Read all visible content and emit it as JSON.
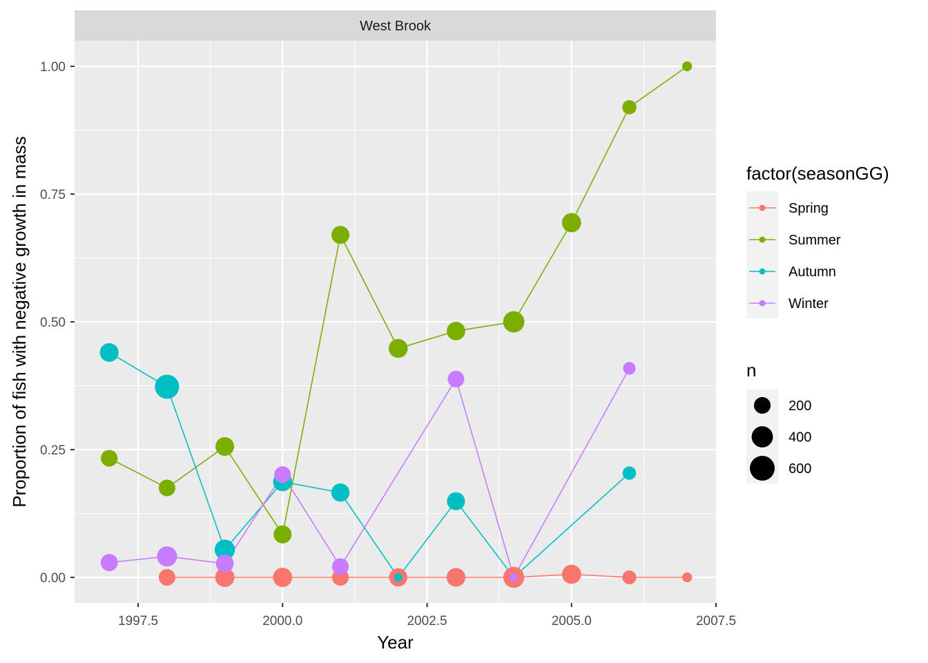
{
  "chart_data": {
    "type": "line",
    "facet_title": "West Brook",
    "xlabel": "Year",
    "ylabel": "Proportion of fish with negative growth in mass",
    "xlim": [
      1996.4,
      2007.5
    ],
    "ylim": [
      -0.05,
      1.05
    ],
    "x_ticks": [
      1997.5,
      2000.0,
      2002.5,
      2005.0,
      2007.5
    ],
    "x_tick_labels": [
      "1997.5",
      "2000.0",
      "2002.5",
      "2005.0",
      "2007.5"
    ],
    "y_ticks": [
      0,
      0.25,
      0.5,
      0.75,
      1.0
    ],
    "y_tick_labels": [
      "0.00",
      "0.25",
      "0.50",
      "0.75",
      "1.00"
    ],
    "grid": true,
    "legend_position": "right",
    "color_legend_title": "factor(seasonGG)",
    "size_legend_title": "n",
    "size_legend": [
      {
        "n": 200,
        "label": "200"
      },
      {
        "n": 400,
        "label": "400"
      },
      {
        "n": 600,
        "label": "600"
      }
    ],
    "series": [
      {
        "name": "Spring",
        "color": "#F8766D",
        "points": [
          {
            "x": 1998,
            "y": 0.0,
            "n": 200
          },
          {
            "x": 1999,
            "y": 0.0,
            "n": 300
          },
          {
            "x": 2000,
            "y": 0.0,
            "n": 300
          },
          {
            "x": 2001,
            "y": 0.0,
            "n": 200
          },
          {
            "x": 2002,
            "y": 0.0,
            "n": 260
          },
          {
            "x": 2003,
            "y": 0.0,
            "n": 280
          },
          {
            "x": 2004,
            "y": 0.0,
            "n": 380
          },
          {
            "x": 2005,
            "y": 0.006,
            "n": 300
          },
          {
            "x": 2006,
            "y": 0.0,
            "n": 110
          },
          {
            "x": 2007,
            "y": 0.0,
            "n": 30
          }
        ]
      },
      {
        "name": "Summer",
        "color": "#7CAE00",
        "points": [
          {
            "x": 1997,
            "y": 0.233,
            "n": 200
          },
          {
            "x": 1998,
            "y": 0.175,
            "n": 200
          },
          {
            "x": 1999,
            "y": 0.256,
            "n": 280
          },
          {
            "x": 2000,
            "y": 0.084,
            "n": 250
          },
          {
            "x": 2001,
            "y": 0.67,
            "n": 250
          },
          {
            "x": 2002,
            "y": 0.448,
            "n": 290
          },
          {
            "x": 2003,
            "y": 0.482,
            "n": 270
          },
          {
            "x": 2004,
            "y": 0.5,
            "n": 400
          },
          {
            "x": 2005,
            "y": 0.694,
            "n": 300
          },
          {
            "x": 2006,
            "y": 0.92,
            "n": 120
          },
          {
            "x": 2007,
            "y": 1.0,
            "n": 30
          }
        ]
      },
      {
        "name": "Autumn",
        "color": "#00BFC4",
        "points": [
          {
            "x": 1997,
            "y": 0.44,
            "n": 280
          },
          {
            "x": 1998,
            "y": 0.373,
            "n": 560
          },
          {
            "x": 1999,
            "y": 0.054,
            "n": 350
          },
          {
            "x": 2000,
            "y": 0.187,
            "n": 290
          },
          {
            "x": 2001,
            "y": 0.166,
            "n": 260
          },
          {
            "x": 2002,
            "y": 0.0,
            "n": 12
          },
          {
            "x": 2003,
            "y": 0.149,
            "n": 250
          },
          {
            "x": 2004,
            "y": 0.0,
            "n": 15
          },
          {
            "x": 2006,
            "y": 0.204,
            "n": 100
          }
        ]
      },
      {
        "name": "Winter",
        "color": "#C77CFF",
        "points": [
          {
            "x": 1997,
            "y": 0.029,
            "n": 220
          },
          {
            "x": 1998,
            "y": 0.041,
            "n": 340
          },
          {
            "x": 1999,
            "y": 0.027,
            "n": 240
          },
          {
            "x": 2000,
            "y": 0.201,
            "n": 200
          },
          {
            "x": 2001,
            "y": 0.021,
            "n": 200
          },
          {
            "x": 2003,
            "y": 0.388,
            "n": 200
          },
          {
            "x": 2004,
            "y": 0.0,
            "n": 15
          },
          {
            "x": 2006,
            "y": 0.409,
            "n": 80
          }
        ]
      }
    ]
  }
}
